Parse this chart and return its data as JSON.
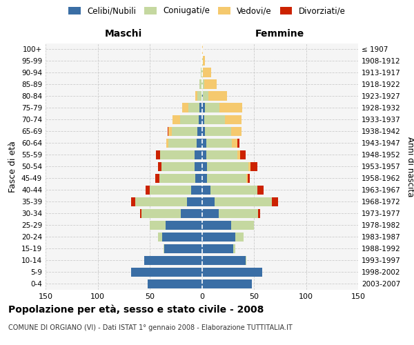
{
  "age_groups_bottom_to_top": [
    "0-4",
    "5-9",
    "10-14",
    "15-19",
    "20-24",
    "25-29",
    "30-34",
    "35-39",
    "40-44",
    "45-49",
    "50-54",
    "55-59",
    "60-64",
    "65-69",
    "70-74",
    "75-79",
    "80-84",
    "85-89",
    "90-94",
    "95-99",
    "100+"
  ],
  "birth_years_bottom_to_top": [
    "2003-2007",
    "1998-2002",
    "1993-1997",
    "1988-1992",
    "1983-1987",
    "1978-1982",
    "1973-1977",
    "1968-1972",
    "1963-1967",
    "1958-1962",
    "1953-1957",
    "1948-1952",
    "1943-1947",
    "1938-1942",
    "1933-1937",
    "1928-1932",
    "1923-1927",
    "1918-1922",
    "1913-1917",
    "1908-1912",
    "≤ 1907"
  ],
  "maschi": {
    "celibi": [
      52,
      68,
      55,
      36,
      38,
      35,
      20,
      14,
      10,
      6,
      7,
      7,
      5,
      4,
      3,
      2,
      0,
      0,
      0,
      0,
      0
    ],
    "coniugati": [
      0,
      0,
      0,
      1,
      4,
      15,
      38,
      50,
      40,
      35,
      32,
      33,
      27,
      25,
      18,
      11,
      4,
      2,
      1,
      0,
      0
    ],
    "vedovi": [
      0,
      0,
      0,
      0,
      0,
      0,
      0,
      0,
      0,
      0,
      0,
      0,
      2,
      3,
      7,
      6,
      2,
      0,
      0,
      0,
      0
    ],
    "divorziati": [
      0,
      0,
      0,
      0,
      0,
      0,
      1,
      4,
      4,
      4,
      3,
      4,
      0,
      1,
      0,
      0,
      0,
      0,
      0,
      0,
      0
    ]
  },
  "femmine": {
    "nubili": [
      48,
      58,
      42,
      30,
      32,
      28,
      16,
      12,
      8,
      5,
      5,
      4,
      4,
      3,
      2,
      3,
      1,
      0,
      0,
      0,
      0
    ],
    "coniugate": [
      0,
      0,
      1,
      2,
      8,
      22,
      38,
      55,
      45,
      38,
      40,
      30,
      25,
      25,
      20,
      14,
      5,
      2,
      1,
      1,
      0
    ],
    "vedove": [
      0,
      0,
      0,
      0,
      0,
      0,
      0,
      0,
      0,
      1,
      2,
      3,
      5,
      10,
      16,
      22,
      18,
      12,
      8,
      2,
      1
    ],
    "divorziate": [
      0,
      0,
      0,
      0,
      0,
      0,
      2,
      6,
      6,
      2,
      6,
      5,
      2,
      0,
      0,
      0,
      0,
      0,
      0,
      0,
      0
    ]
  },
  "colors": {
    "celibi_nubili": "#3a6ea5",
    "coniugati": "#c5d8a0",
    "vedovi": "#f5c96e",
    "divorziati": "#cc2200"
  },
  "xlim": 150,
  "title": "Popolazione per età, sesso e stato civile - 2008",
  "subtitle": "COMUNE DI ORGIANO (VI) - Dati ISTAT 1° gennaio 2008 - Elaborazione TUTTITALIA.IT",
  "xlabel_left": "Maschi",
  "xlabel_right": "Femmine",
  "ylabel_left": "Fasce di età",
  "ylabel_right": "Anni di nascita",
  "legend_labels": [
    "Celibi/Nubili",
    "Coniugati/e",
    "Vedovi/e",
    "Divorziati/e"
  ],
  "bg_color": "#ffffff",
  "plot_bg": "#f5f5f5",
  "grid_color": "#cccccc"
}
